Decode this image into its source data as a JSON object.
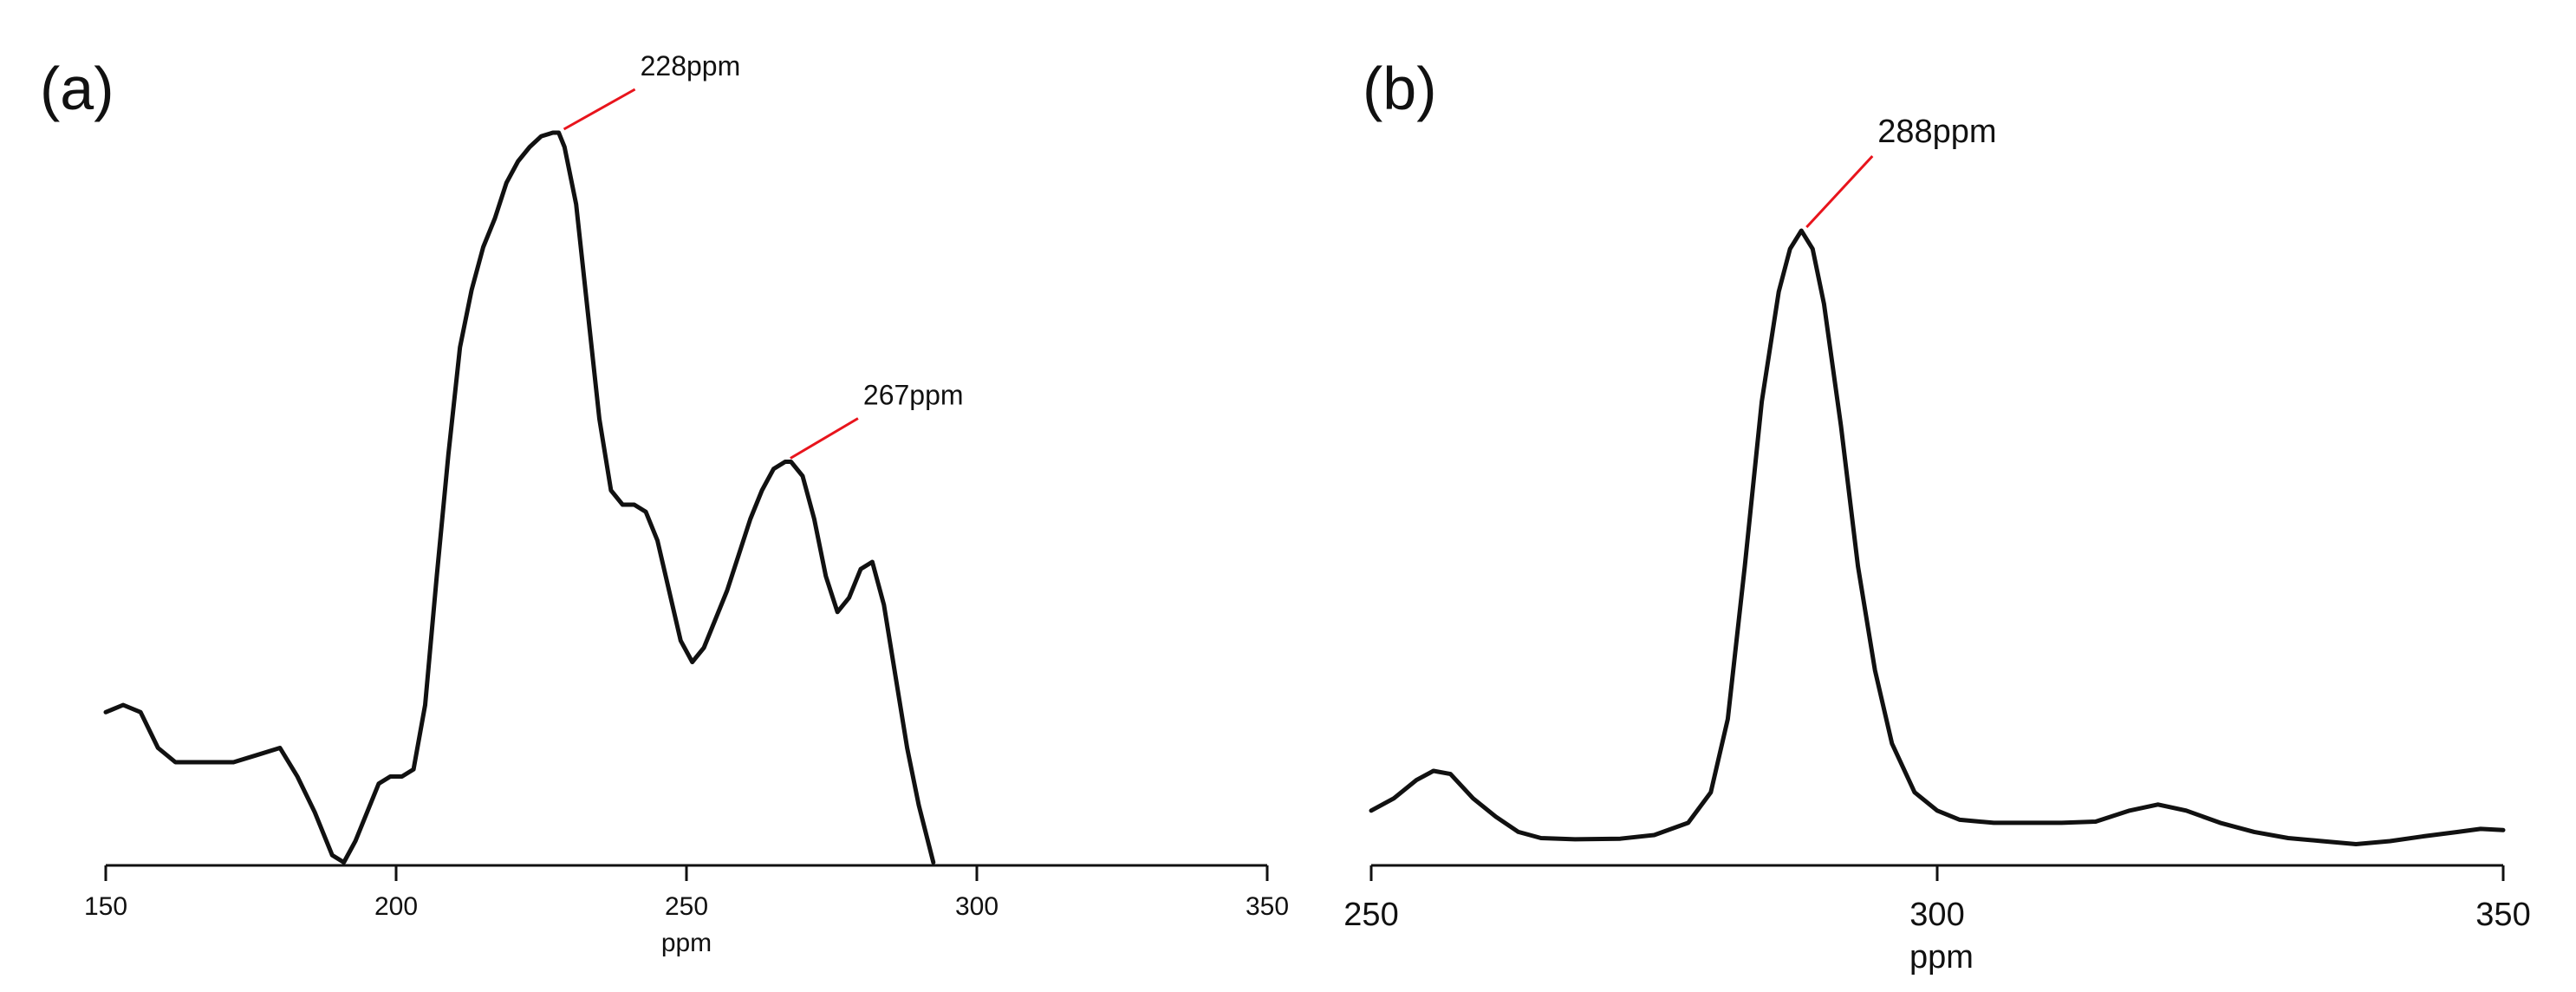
{
  "chart_data": [
    {
      "type": "line",
      "panel_label": "(a)",
      "title": "",
      "xlabel": "ppm",
      "ylabel": "",
      "xlim": [
        150,
        350
      ],
      "x_ticks": [
        150,
        200,
        250,
        300,
        350
      ],
      "x_tick_labels": [
        "150",
        "200",
        "250",
        "300",
        "350"
      ],
      "grid": false,
      "legend": "none",
      "series": [
        {
          "x": [
            150,
            153,
            156,
            159,
            162,
            165,
            168,
            172,
            176,
            180,
            183,
            186,
            189,
            191,
            193,
            195,
            197,
            199,
            201,
            203,
            205,
            207,
            209,
            211,
            213,
            215,
            217,
            219,
            221,
            223,
            225,
            227,
            228,
            229,
            231,
            233,
            235,
            237,
            239,
            241,
            243,
            245,
            247,
            249,
            251,
            253,
            255,
            257,
            259,
            261,
            263,
            265,
            267,
            268,
            270,
            272,
            274,
            276,
            278,
            280,
            282,
            284,
            286,
            288,
            290,
            292.5
          ],
          "y": [
            0.19,
            0.2,
            0.19,
            0.14,
            0.12,
            0.12,
            0.12,
            0.12,
            0.13,
            0.14,
            0.1,
            0.05,
            -0.01,
            -0.02,
            0.01,
            0.05,
            0.09,
            0.1,
            0.1,
            0.11,
            0.2,
            0.38,
            0.55,
            0.7,
            0.78,
            0.84,
            0.88,
            0.93,
            0.96,
            0.98,
            0.995,
            1.0,
            1.0,
            0.98,
            0.9,
            0.75,
            0.6,
            0.5,
            0.48,
            0.48,
            0.47,
            0.43,
            0.36,
            0.29,
            0.26,
            0.28,
            0.32,
            0.36,
            0.41,
            0.46,
            0.5,
            0.53,
            0.54,
            0.54,
            0.52,
            0.46,
            0.38,
            0.33,
            0.35,
            0.39,
            0.4,
            0.34,
            0.24,
            0.14,
            0.06,
            -0.02
          ]
        }
      ],
      "annotations": [
        {
          "text": "228ppm",
          "x": 228
        },
        {
          "text": "267ppm",
          "x": 267
        }
      ]
    },
    {
      "type": "line",
      "panel_label": "(b)",
      "title": "",
      "xlabel": "ppm",
      "ylabel": "",
      "xlim": [
        250,
        350
      ],
      "x_ticks": [
        250,
        300,
        350
      ],
      "x_tick_labels": [
        "250",
        "300",
        "350"
      ],
      "grid": false,
      "legend": "none",
      "series": [
        {
          "x": [
            250,
            252,
            254,
            255.5,
            257,
            259,
            261,
            263,
            265,
            268,
            272,
            275,
            278,
            280,
            281.5,
            283,
            284.5,
            286,
            287,
            288,
            289,
            290,
            291.5,
            293,
            294.5,
            296,
            298,
            300,
            302,
            305,
            308,
            311,
            314,
            317,
            319.5,
            322,
            325,
            328,
            331,
            334,
            337,
            340,
            343,
            346,
            348,
            350
          ],
          "y": [
            0.05,
            0.07,
            0.1,
            0.115,
            0.11,
            0.07,
            0.04,
            0.015,
            0.005,
            0.003,
            0.004,
            0.01,
            0.03,
            0.08,
            0.2,
            0.45,
            0.72,
            0.9,
            0.97,
            1.0,
            0.97,
            0.88,
            0.68,
            0.45,
            0.28,
            0.16,
            0.08,
            0.05,
            0.035,
            0.03,
            0.03,
            0.03,
            0.032,
            0.05,
            0.06,
            0.05,
            0.03,
            0.015,
            0.005,
            0.0,
            -0.005,
            0.0,
            0.008,
            0.015,
            0.02,
            0.018
          ]
        }
      ],
      "annotations": [
        {
          "text": "288ppm",
          "x": 288
        }
      ]
    }
  ]
}
